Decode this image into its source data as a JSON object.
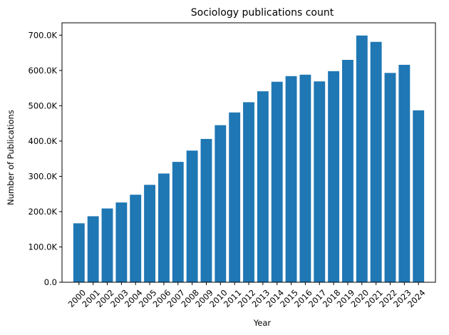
{
  "chart_data": {
    "type": "bar",
    "title": "Sociology publications count",
    "xlabel": "Year",
    "ylabel": "Number of Publications",
    "categories": [
      "2000",
      "2001",
      "2002",
      "2003",
      "2004",
      "2005",
      "2006",
      "2007",
      "2008",
      "2009",
      "2010",
      "2011",
      "2012",
      "2013",
      "2014",
      "2015",
      "2016",
      "2017",
      "2018",
      "2019",
      "2020",
      "2021",
      "2022",
      "2023",
      "2024"
    ],
    "values": [
      167000,
      187000,
      209000,
      226000,
      248000,
      276000,
      308000,
      341000,
      373000,
      406000,
      445000,
      481000,
      510000,
      541000,
      568000,
      584000,
      588000,
      569000,
      598000,
      630000,
      699000,
      681000,
      593000,
      616000,
      487000
    ],
    "ylim": [
      0,
      735000
    ],
    "yticks": [
      0,
      100000,
      200000,
      300000,
      400000,
      500000,
      600000,
      700000
    ],
    "ytick_labels": [
      "0.0",
      "100.0K",
      "200.0K",
      "300.0K",
      "400.0K",
      "500.0K",
      "600.0K",
      "700.0K"
    ],
    "bar_color": "#1f77b4",
    "grid": false,
    "legend": "none"
  }
}
